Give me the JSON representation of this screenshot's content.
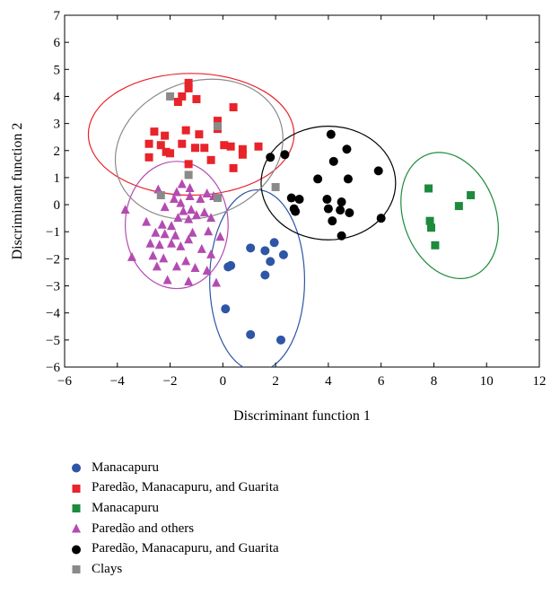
{
  "chart_data": {
    "type": "scatter",
    "xlabel": "Discriminant function 1",
    "ylabel": "Discriminant function 2",
    "xlim": [
      -6,
      12
    ],
    "ylim": [
      -6,
      7
    ],
    "xticks": [
      -6,
      -4,
      -2,
      0,
      2,
      4,
      6,
      8,
      10,
      12
    ],
    "yticks": [
      -6,
      -5,
      -4,
      -3,
      -2,
      -1,
      0,
      1,
      2,
      3,
      4,
      5,
      6,
      7
    ],
    "grid": false,
    "legend_position": "below",
    "series": [
      {
        "name": "Manacapuru",
        "marker": "circle",
        "color": "#2e55a6",
        "points": [
          [
            0.2,
            -2.3
          ],
          [
            0.3,
            -2.25
          ],
          [
            0.1,
            -3.85
          ],
          [
            1.05,
            -1.6
          ],
          [
            1.6,
            -1.7
          ],
          [
            1.95,
            -1.4
          ],
          [
            1.8,
            -2.1
          ],
          [
            2.3,
            -1.85
          ],
          [
            1.6,
            -2.6
          ],
          [
            1.05,
            -4.8
          ],
          [
            2.2,
            -5.0
          ]
        ],
        "ellipse": {
          "cx": 1.3,
          "cy": -2.8,
          "rx": 1.8,
          "ry": 3.35,
          "rotation_deg": 0
        }
      },
      {
        "name": "Paredão, Manacapuru, and Guarita",
        "marker": "square",
        "color": "#e8232a",
        "points": [
          [
            -1.3,
            4.5
          ],
          [
            -1.3,
            4.3
          ],
          [
            -1.0,
            3.9
          ],
          [
            -1.7,
            3.8
          ],
          [
            -1.55,
            4.0
          ],
          [
            0.4,
            3.6
          ],
          [
            -0.2,
            3.1
          ],
          [
            -0.2,
            2.8
          ],
          [
            -2.6,
            2.7
          ],
          [
            -2.2,
            2.55
          ],
          [
            -1.4,
            2.75
          ],
          [
            -0.9,
            2.6
          ],
          [
            -2.8,
            2.25
          ],
          [
            -2.35,
            2.2
          ],
          [
            -2.15,
            1.95
          ],
          [
            -1.55,
            2.25
          ],
          [
            -1.05,
            2.1
          ],
          [
            -0.7,
            2.1
          ],
          [
            0.05,
            2.2
          ],
          [
            0.3,
            2.15
          ],
          [
            0.75,
            2.05
          ],
          [
            0.75,
            1.85
          ],
          [
            -0.45,
            1.65
          ],
          [
            -2.8,
            1.75
          ],
          [
            -2.0,
            1.9
          ],
          [
            -1.3,
            1.5
          ],
          [
            0.4,
            1.35
          ],
          [
            1.35,
            2.15
          ]
        ],
        "ellipse": {
          "cx": -1.2,
          "cy": 2.6,
          "rx": 3.9,
          "ry": 2.25,
          "rotation_deg": 0
        }
      },
      {
        "name": "Manacapuru",
        "marker": "square",
        "color": "#1d8a3c",
        "points": [
          [
            7.8,
            0.6
          ],
          [
            9.4,
            0.35
          ],
          [
            8.95,
            -0.05
          ],
          [
            7.85,
            -0.6
          ],
          [
            7.9,
            -0.85
          ],
          [
            8.05,
            -1.5
          ]
        ],
        "ellipse": {
          "cx": 8.6,
          "cy": -0.4,
          "rx": 1.75,
          "ry": 2.4,
          "rotation_deg": -20
        }
      },
      {
        "name": "Paredão and others",
        "marker": "triangle",
        "color": "#b44bb1",
        "points": [
          [
            -1.55,
            0.75
          ],
          [
            -1.25,
            0.6
          ],
          [
            -2.45,
            0.55
          ],
          [
            -1.75,
            0.45
          ],
          [
            -0.6,
            0.4
          ],
          [
            -1.85,
            0.2
          ],
          [
            -1.6,
            0.05
          ],
          [
            -1.25,
            0.3
          ],
          [
            -0.85,
            0.2
          ],
          [
            -0.35,
            0.3
          ],
          [
            -2.2,
            -0.1
          ],
          [
            -1.5,
            -0.25
          ],
          [
            -1.2,
            -0.2
          ],
          [
            -1.7,
            -0.5
          ],
          [
            -1.3,
            -0.55
          ],
          [
            -1.0,
            -0.4
          ],
          [
            -0.7,
            -0.3
          ],
          [
            -0.45,
            -0.5
          ],
          [
            -3.7,
            -0.2
          ],
          [
            -2.9,
            -0.65
          ],
          [
            -2.3,
            -0.75
          ],
          [
            -1.95,
            -0.8
          ],
          [
            -2.55,
            -1.05
          ],
          [
            -2.2,
            -1.1
          ],
          [
            -1.8,
            -1.15
          ],
          [
            -1.15,
            -1.05
          ],
          [
            -0.55,
            -1.0
          ],
          [
            -0.1,
            -1.2
          ],
          [
            -2.75,
            -1.45
          ],
          [
            -2.4,
            -1.5
          ],
          [
            -1.95,
            -1.45
          ],
          [
            -1.6,
            -1.55
          ],
          [
            -1.3,
            -1.3
          ],
          [
            -0.8,
            -1.65
          ],
          [
            -0.45,
            -1.85
          ],
          [
            -3.45,
            -1.95
          ],
          [
            -2.65,
            -1.9
          ],
          [
            -2.25,
            -2.0
          ],
          [
            -1.75,
            -2.3
          ],
          [
            -1.4,
            -2.1
          ],
          [
            -1.05,
            -2.35
          ],
          [
            -2.5,
            -2.3
          ],
          [
            -0.6,
            -2.45
          ],
          [
            -2.1,
            -2.8
          ],
          [
            -1.3,
            -2.85
          ],
          [
            -0.25,
            -2.9
          ]
        ],
        "ellipse": {
          "cx": -1.75,
          "cy": -0.75,
          "rx": 1.95,
          "ry": 2.35,
          "rotation_deg": 0
        }
      },
      {
        "name": "Paredão, Manacapuru, and Guarita",
        "marker": "circle",
        "color": "#000000",
        "points": [
          [
            4.1,
            2.6
          ],
          [
            4.7,
            2.05
          ],
          [
            2.35,
            1.85
          ],
          [
            1.8,
            1.75
          ],
          [
            4.2,
            1.6
          ],
          [
            5.9,
            1.25
          ],
          [
            3.6,
            0.95
          ],
          [
            4.75,
            0.95
          ],
          [
            2.6,
            0.25
          ],
          [
            2.9,
            0.2
          ],
          [
            3.95,
            0.2
          ],
          [
            4.5,
            0.1
          ],
          [
            2.7,
            -0.15
          ],
          [
            2.75,
            -0.25
          ],
          [
            4.0,
            -0.15
          ],
          [
            4.8,
            -0.3
          ],
          [
            4.45,
            -0.2
          ],
          [
            4.15,
            -0.6
          ],
          [
            6.0,
            -0.5
          ],
          [
            4.5,
            -1.15
          ]
        ],
        "ellipse": {
          "cx": 4.0,
          "cy": 0.8,
          "rx": 2.55,
          "ry": 2.1,
          "rotation_deg": 0
        }
      },
      {
        "name": "Clays",
        "marker": "square",
        "color": "#8a8a8a",
        "points": [
          [
            -2.0,
            4.0
          ],
          [
            -0.2,
            2.9
          ],
          [
            -1.3,
            1.1
          ],
          [
            -2.35,
            0.35
          ],
          [
            -0.2,
            0.25
          ],
          [
            2.0,
            0.65
          ]
        ],
        "ellipse": {
          "cx": -0.9,
          "cy": 2.05,
          "rx": 3.25,
          "ry": 2.5,
          "rotation_deg": -20
        }
      }
    ]
  }
}
